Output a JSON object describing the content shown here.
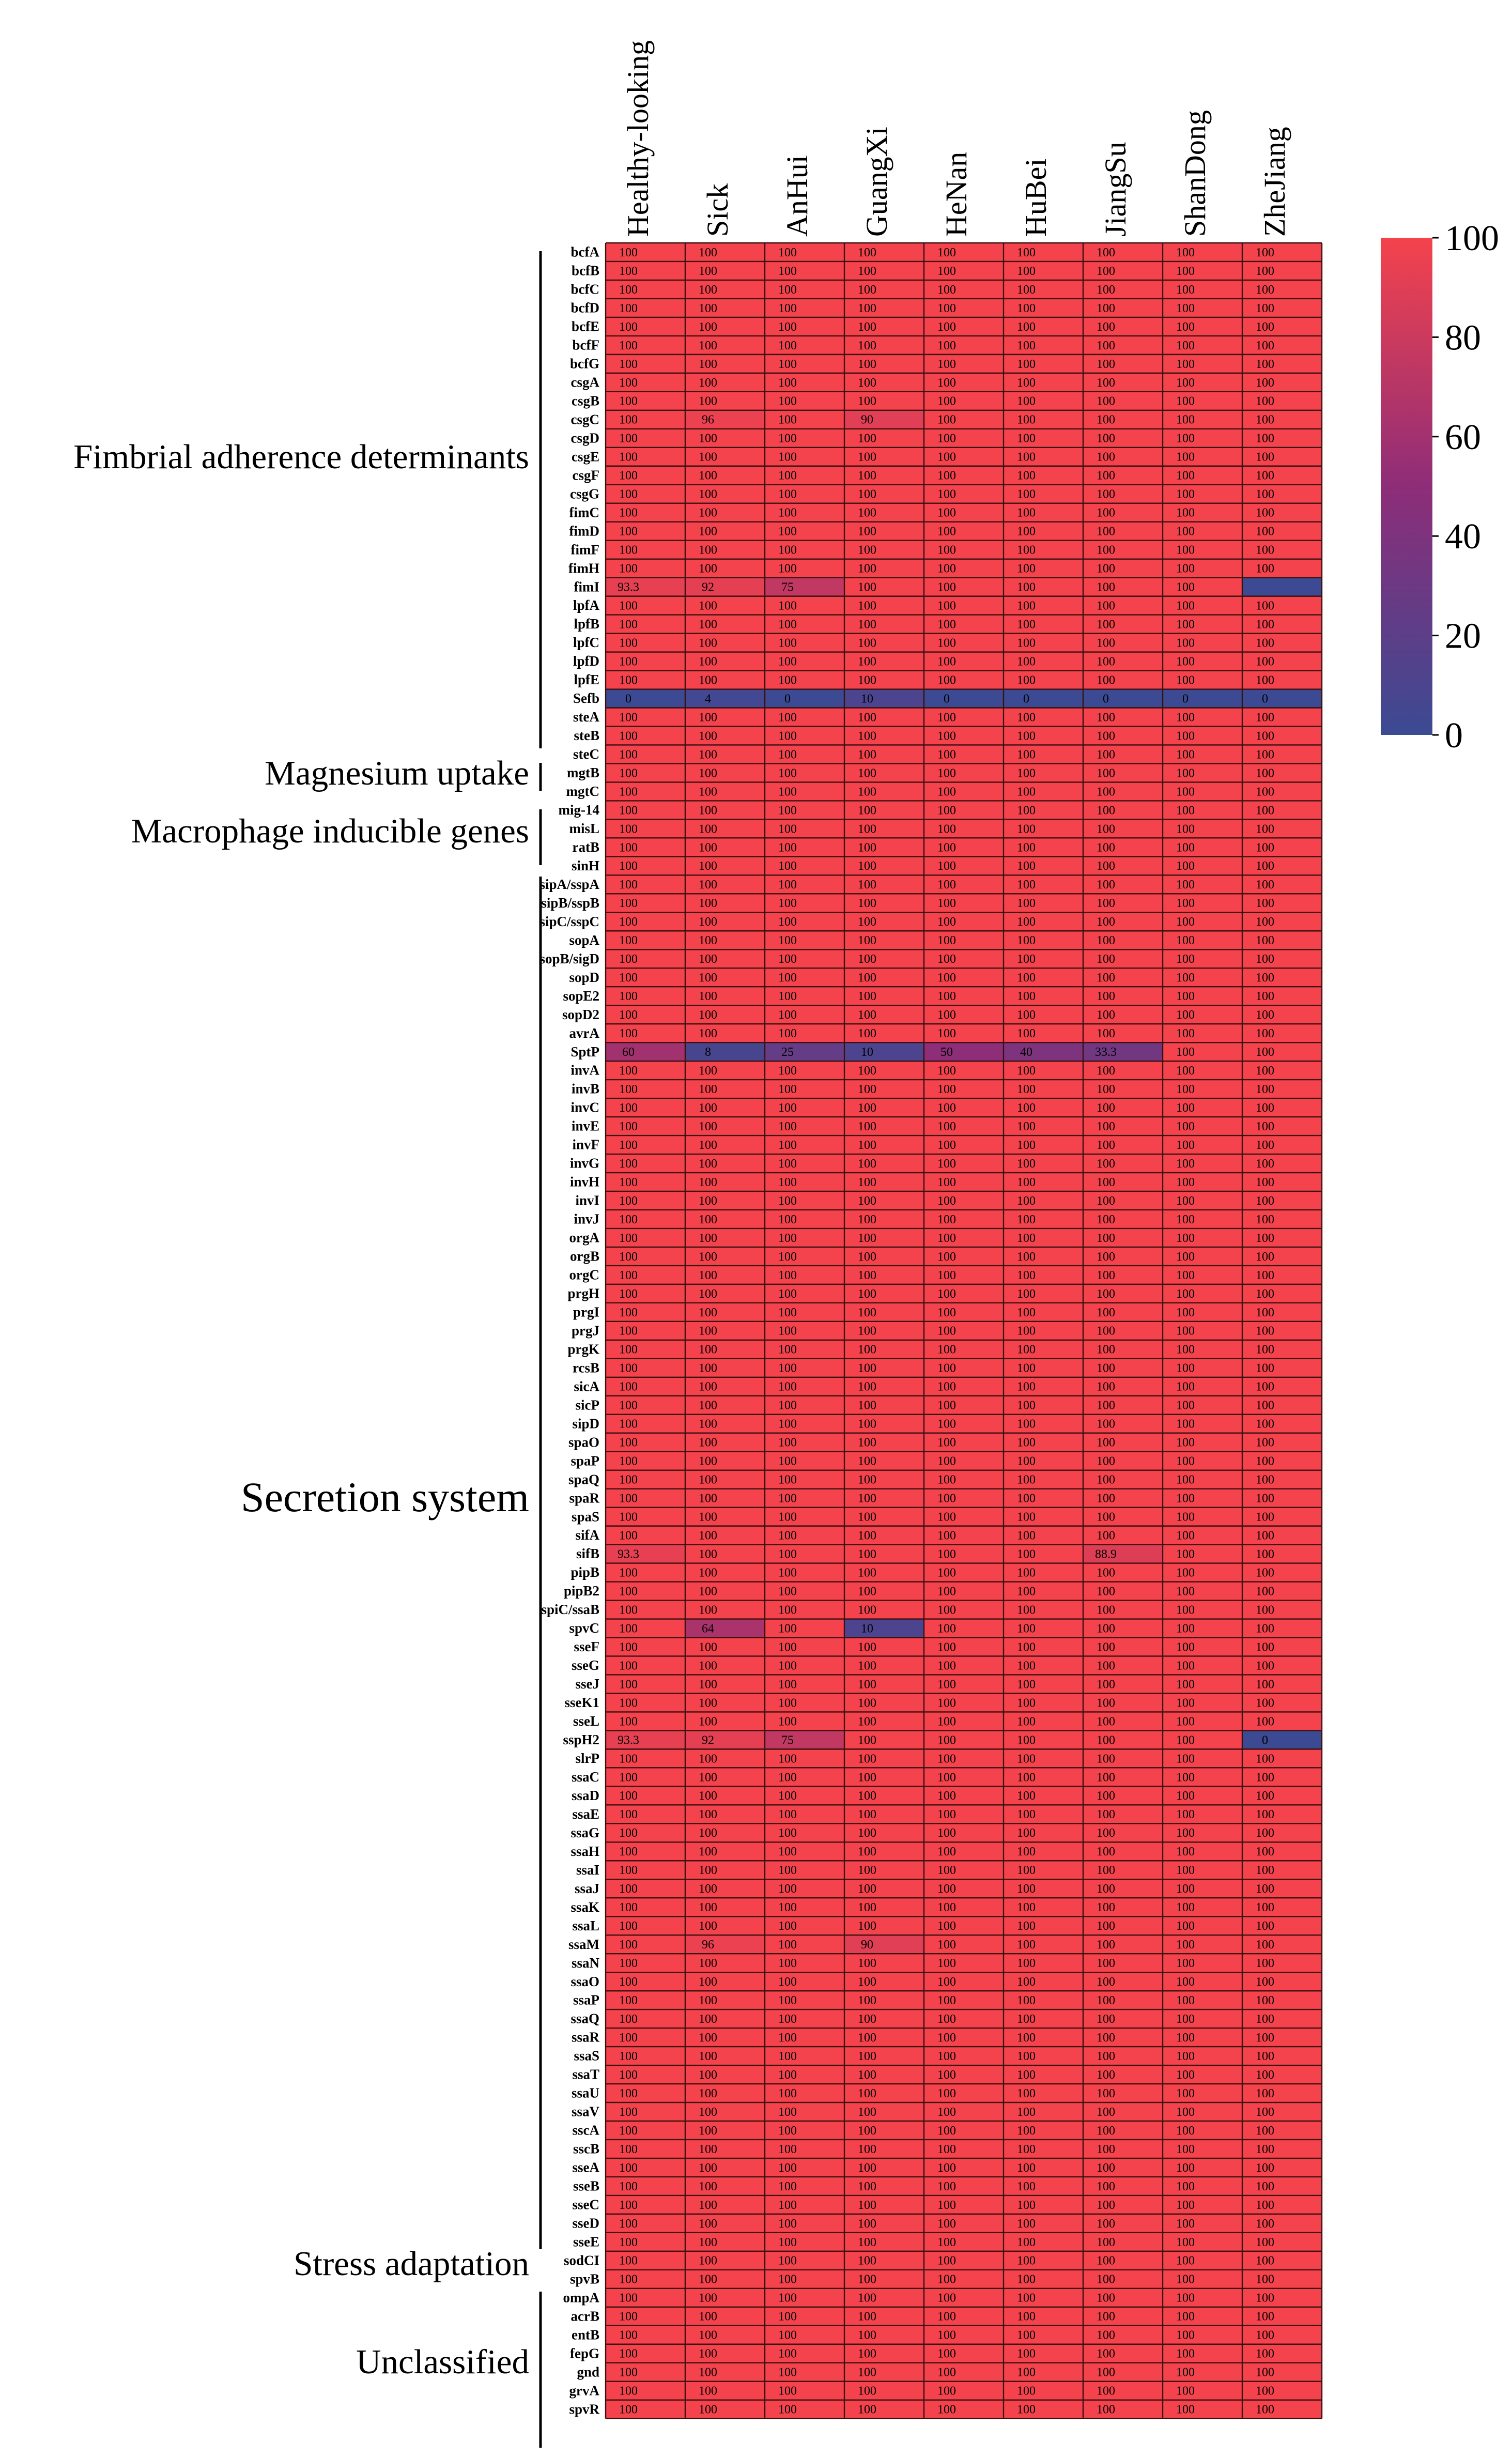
{
  "chart_data": {
    "type": "heatmap",
    "columns": [
      "Healthy-looking",
      "Sick",
      "AnHui",
      "GuangXi",
      "HeNan",
      "HuBei",
      "JiangSu",
      "ShanDong",
      "ZheJiang"
    ],
    "genes": [
      "bcfA",
      "bcfB",
      "bcfC",
      "bcfD",
      "bcfE",
      "bcfF",
      "bcfG",
      "csgA",
      "csgB",
      "csgC",
      "csgD",
      "csgE",
      "csgF",
      "csgG",
      "fimC",
      "fimD",
      "fimF",
      "fimH",
      "fimI",
      "lpfA",
      "lpfB",
      "lpfC",
      "lpfD",
      "lpfE",
      "Sefb",
      "steA",
      "steB",
      "steC",
      "mgtB",
      "mgtC",
      "mig-14",
      "misL",
      "ratB",
      "sinH",
      "sipA/sspA",
      "sipB/sspB",
      "sipC/sspC",
      "sopA",
      "sopB/sigD",
      "sopD",
      "sopE2",
      "sopD2",
      "avrA",
      "SptP",
      "invA",
      "invB",
      "invC",
      "invE",
      "invF",
      "invG",
      "invH",
      "invI",
      "invJ",
      "orgA",
      "orgB",
      "orgC",
      "prgH",
      "prgI",
      "prgJ",
      "prgK",
      "rcsB",
      "sicA",
      "sicP",
      "sipD",
      "spaO",
      "spaP",
      "spaQ",
      "spaR",
      "spaS",
      "sifA",
      "sifB",
      "pipB",
      "pipB2",
      "spiC/ssaB",
      "spvC",
      "sseF",
      "sseG",
      "sseJ",
      "sseK1",
      "sseL",
      "sspH2",
      "slrP",
      "ssaC",
      "ssaD",
      "ssaE",
      "ssaG",
      "ssaH",
      "ssaI",
      "ssaJ",
      "ssaK",
      "ssaL",
      "ssaM",
      "ssaN",
      "ssaO",
      "ssaP",
      "ssaQ",
      "ssaR",
      "ssaS",
      "ssaT",
      "ssaU",
      "ssaV",
      "sscA",
      "sscB",
      "sseA",
      "sseB",
      "sseC",
      "sseD",
      "sseE",
      "sodCI",
      "spvB",
      "ompA",
      "acrB",
      "entB",
      "fepG",
      "gnd",
      "grvA",
      "spvR"
    ],
    "default_value": 100,
    "exceptions": [
      {
        "gene": "csgC",
        "column": "Sick",
        "value": 96,
        "label": "96"
      },
      {
        "gene": "csgC",
        "column": "GuangXi",
        "value": 90,
        "label": "90"
      },
      {
        "gene": "fimI",
        "column": "Healthy-looking",
        "value": 93.3,
        "label": "93.3"
      },
      {
        "gene": "fimI",
        "column": "Sick",
        "value": 92,
        "label": "92"
      },
      {
        "gene": "fimI",
        "column": "AnHui",
        "value": 75,
        "label": "75"
      },
      {
        "gene": "fimI",
        "column": "ZheJiang",
        "value": 0,
        "label": ""
      },
      {
        "gene": "Sefb",
        "column": "Healthy-looking",
        "value": 0,
        "label": "0"
      },
      {
        "gene": "Sefb",
        "column": "Sick",
        "value": 4,
        "label": "4"
      },
      {
        "gene": "Sefb",
        "column": "AnHui",
        "value": 0,
        "label": "0"
      },
      {
        "gene": "Sefb",
        "column": "GuangXi",
        "value": 10,
        "label": "10"
      },
      {
        "gene": "Sefb",
        "column": "HeNan",
        "value": 0,
        "label": "0"
      },
      {
        "gene": "Sefb",
        "column": "HuBei",
        "value": 0,
        "label": "0"
      },
      {
        "gene": "Sefb",
        "column": "JiangSu",
        "value": 0,
        "label": "0"
      },
      {
        "gene": "Sefb",
        "column": "ShanDong",
        "value": 0,
        "label": "0"
      },
      {
        "gene": "Sefb",
        "column": "ZheJiang",
        "value": 0,
        "label": "0"
      },
      {
        "gene": "SptP",
        "column": "Healthy-looking",
        "value": 60,
        "label": "60"
      },
      {
        "gene": "SptP",
        "column": "Sick",
        "value": 8,
        "label": "8"
      },
      {
        "gene": "SptP",
        "column": "AnHui",
        "value": 25,
        "label": "25"
      },
      {
        "gene": "SptP",
        "column": "GuangXi",
        "value": 10,
        "label": "10"
      },
      {
        "gene": "SptP",
        "column": "HeNan",
        "value": 50,
        "label": "50"
      },
      {
        "gene": "SptP",
        "column": "HuBei",
        "value": 40,
        "label": "40"
      },
      {
        "gene": "SptP",
        "column": "JiangSu",
        "value": 33.3,
        "label": "33.3"
      },
      {
        "gene": "sifB",
        "column": "Healthy-looking",
        "value": 93.3,
        "label": "93.3"
      },
      {
        "gene": "sifB",
        "column": "JiangSu",
        "value": 88.9,
        "label": "88.9"
      },
      {
        "gene": "spvC",
        "column": "Sick",
        "value": 64,
        "label": "64"
      },
      {
        "gene": "spvC",
        "column": "GuangXi",
        "value": 10,
        "label": "10"
      },
      {
        "gene": "sspH2",
        "column": "Healthy-looking",
        "value": 93.3,
        "label": "93.3"
      },
      {
        "gene": "sspH2",
        "column": "Sick",
        "value": 92,
        "label": "92"
      },
      {
        "gene": "sspH2",
        "column": "AnHui",
        "value": 75,
        "label": "75"
      },
      {
        "gene": "sspH2",
        "column": "ZheJiang",
        "value": 0,
        "label": "0"
      },
      {
        "gene": "ssaM",
        "column": "Sick",
        "value": 96,
        "label": "96"
      },
      {
        "gene": "ssaM",
        "column": "GuangXi",
        "value": 90,
        "label": "90"
      }
    ],
    "groups": [
      {
        "label": "Fimbrial adherence determinants",
        "first_gene": "bcfA",
        "last_gene": "steC"
      },
      {
        "label": "Magnesium uptake",
        "first_gene": "mgtB",
        "last_gene": "mgtC"
      },
      {
        "label": "Macrophage inducible genes",
        "first_gene": "mig-14",
        "last_gene": "sinH"
      },
      {
        "label": "Secretion system",
        "first_gene": "sipA/sspA",
        "last_gene": "sodCI"
      },
      {
        "label": "Stress adaptation",
        "first_gene": "sodCI",
        "last_gene": "sodCI"
      },
      {
        "label": "Unclassified",
        "first_gene": "spvB",
        "last_gene": "spvR"
      }
    ],
    "colorbar": {
      "min": 0,
      "max": 100,
      "ticks": [
        0,
        20,
        40,
        60,
        80,
        100
      ],
      "low_color": "#3b4a93",
      "mid_color": "#8e2d78",
      "high_color": "#f4434c"
    }
  }
}
